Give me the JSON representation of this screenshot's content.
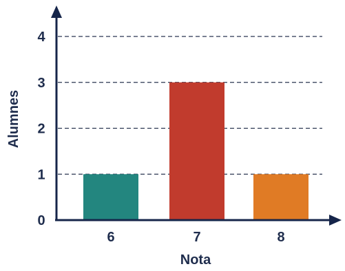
{
  "chart_data": {
    "type": "bar",
    "categories": [
      "6",
      "7",
      "8"
    ],
    "values": [
      1,
      3,
      1
    ],
    "colors": [
      "#23867f",
      "#c13b2d",
      "#e07b25"
    ],
    "xlabel": "Nota",
    "ylabel": "Alumnes",
    "yticks": [
      "0",
      "1",
      "2",
      "3",
      "4"
    ],
    "ylim": [
      0,
      4
    ],
    "grid": true,
    "axis_color": "#16254a",
    "text_color": "#1f2d4d"
  }
}
